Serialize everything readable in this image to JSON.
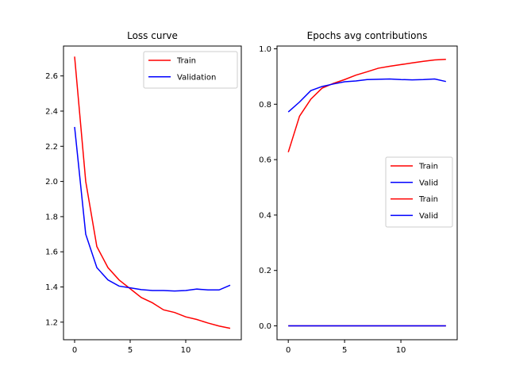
{
  "chart_data": [
    {
      "type": "line",
      "title": "Loss curve",
      "xlabel": "",
      "ylabel": "",
      "xlim": [
        -1,
        15
      ],
      "ylim": [
        1.1,
        2.77
      ],
      "xticks": [
        0,
        5,
        10
      ],
      "yticks": [
        1.2,
        1.4,
        1.6,
        1.8,
        2.0,
        2.2,
        2.4,
        2.6
      ],
      "ytick_labels": [
        "1.2",
        "1.4",
        "1.6",
        "1.8",
        "2.0",
        "2.2",
        "2.4",
        "2.6"
      ],
      "grid": false,
      "legend_position": "top-right",
      "x": [
        0,
        1,
        2,
        3,
        4,
        5,
        6,
        7,
        8,
        9,
        10,
        11,
        12,
        13,
        14
      ],
      "series": [
        {
          "name": "Train",
          "color": "#ff0000",
          "values": [
            2.71,
            2.0,
            1.63,
            1.51,
            1.44,
            1.39,
            1.34,
            1.31,
            1.27,
            1.255,
            1.23,
            1.215,
            1.195,
            1.178,
            1.165
          ]
        },
        {
          "name": "Validation",
          "color": "#0000ff",
          "values": [
            2.31,
            1.7,
            1.51,
            1.44,
            1.405,
            1.395,
            1.385,
            1.38,
            1.38,
            1.377,
            1.38,
            1.388,
            1.383,
            1.383,
            1.41
          ]
        }
      ]
    },
    {
      "type": "line",
      "title": "Epochs avg contributions",
      "xlabel": "",
      "ylabel": "",
      "xlim": [
        -1,
        15
      ],
      "ylim": [
        -0.05,
        1.01
      ],
      "xticks": [
        0,
        5,
        10
      ],
      "yticks": [
        0.0,
        0.2,
        0.4,
        0.6,
        0.8,
        1.0
      ],
      "ytick_labels": [
        "0.0",
        "0.2",
        "0.4",
        "0.6",
        "0.8",
        "1.0"
      ],
      "grid": false,
      "legend_position": "center-right",
      "x": [
        0,
        1,
        2,
        3,
        4,
        5,
        6,
        7,
        8,
        9,
        10,
        11,
        12,
        13,
        14
      ],
      "series": [
        {
          "name": "Train",
          "color": "#ff0000",
          "values": [
            0.627,
            0.757,
            0.818,
            0.858,
            0.875,
            0.889,
            0.905,
            0.917,
            0.93,
            0.937,
            0.943,
            0.949,
            0.955,
            0.96,
            0.962
          ]
        },
        {
          "name": "Valid",
          "color": "#0000ff",
          "values": [
            0.772,
            0.808,
            0.849,
            0.864,
            0.873,
            0.881,
            0.884,
            0.889,
            0.89,
            0.891,
            0.889,
            0.888,
            0.889,
            0.891,
            0.882
          ]
        },
        {
          "name": "Train",
          "color": "#ff0000",
          "values": [
            0,
            0,
            0,
            0,
            0,
            0,
            0,
            0,
            0,
            0,
            0,
            0,
            0,
            0,
            0
          ]
        },
        {
          "name": "Valid",
          "color": "#0000ff",
          "values": [
            0,
            0,
            0,
            0,
            0,
            0,
            0,
            0,
            0,
            0,
            0,
            0,
            0,
            0,
            0
          ]
        }
      ]
    }
  ]
}
